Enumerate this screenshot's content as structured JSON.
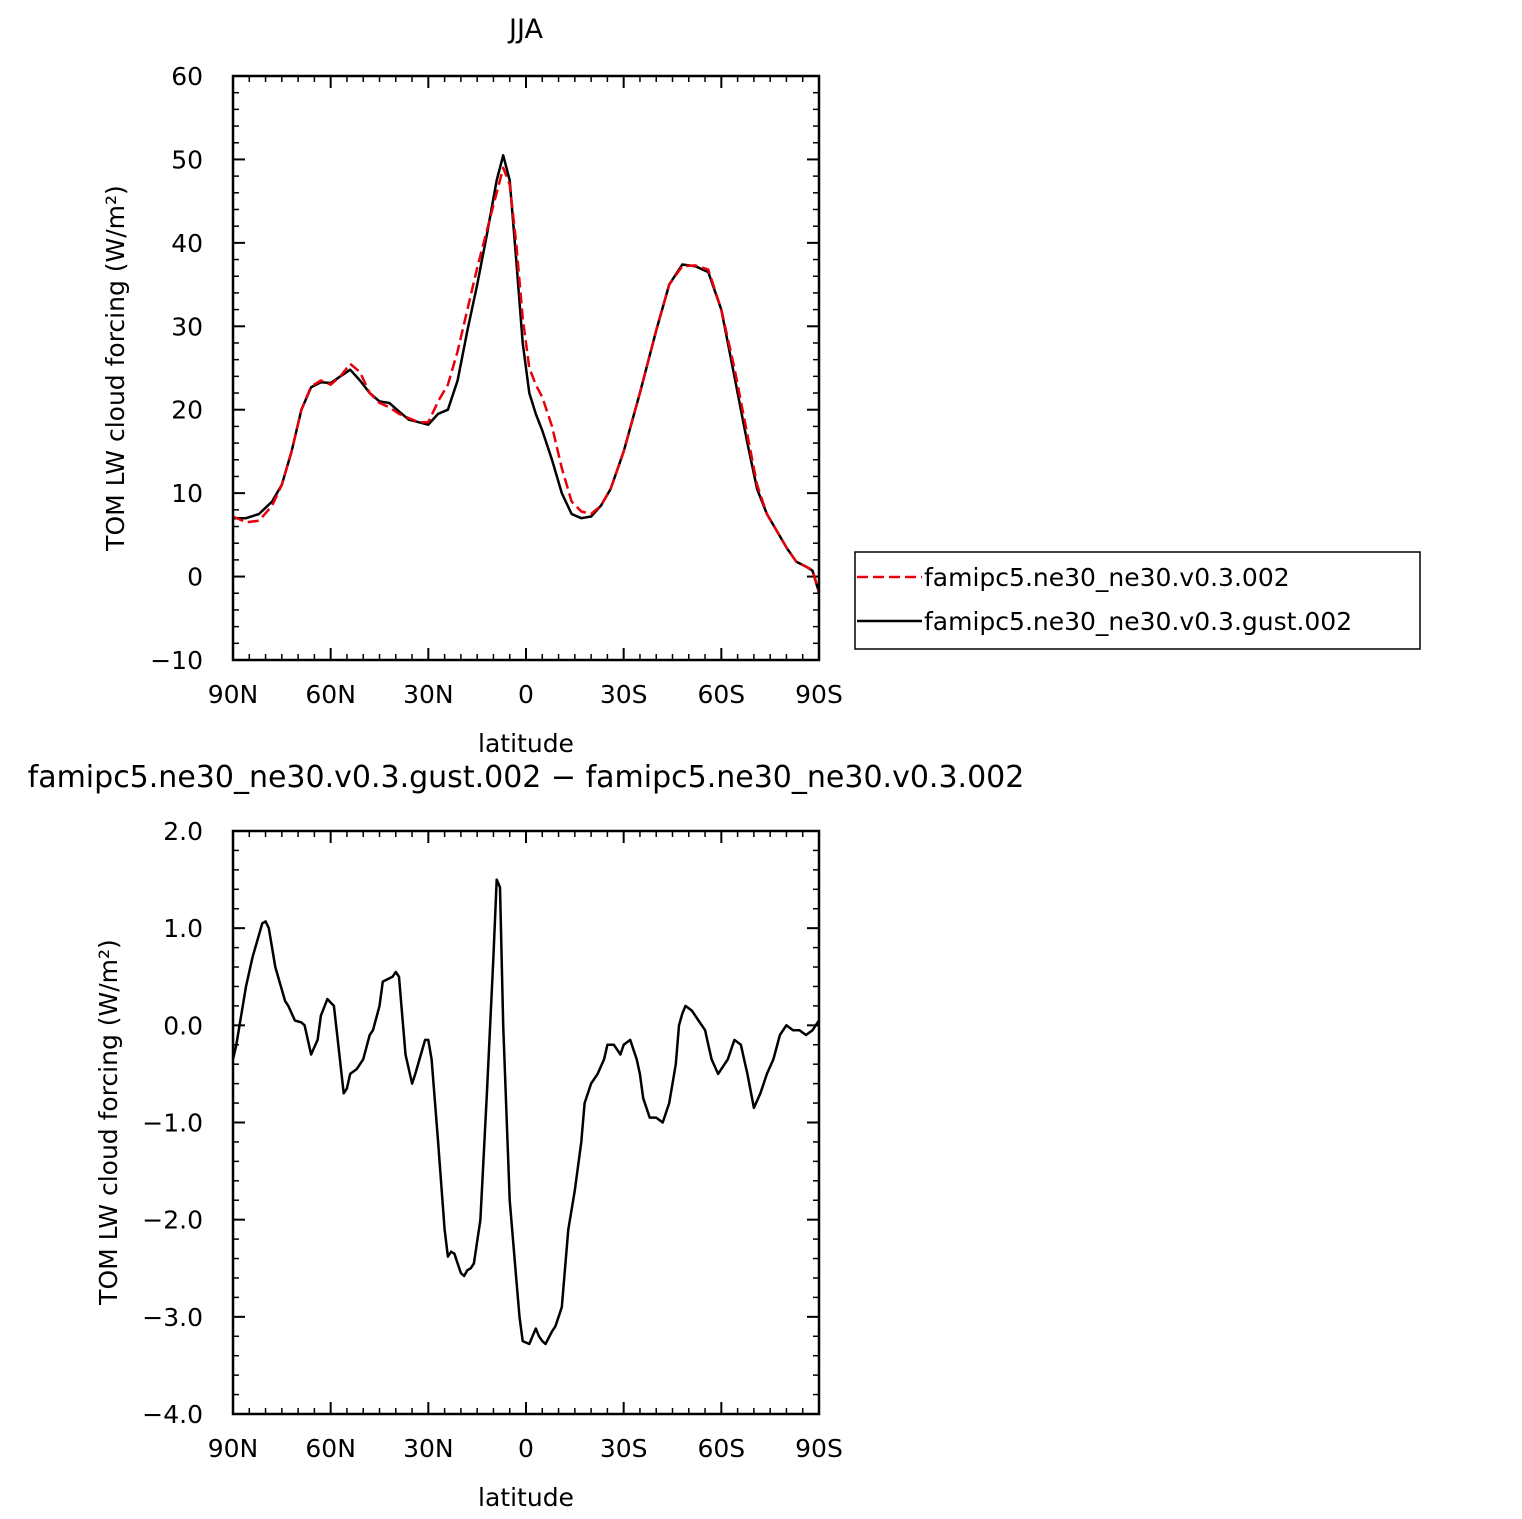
{
  "chart_data": [
    {
      "type": "line",
      "title": "JJA",
      "xlabel": "latitude",
      "ylabel": "TOM LW cloud forcing (W/m²)",
      "xlim": [
        90,
        -90
      ],
      "ylim": [
        -10,
        60
      ],
      "xticks": [
        90,
        60,
        30,
        0,
        -30,
        -60,
        -90
      ],
      "xtick_labels": [
        "90N",
        "60N",
        "30N",
        "0",
        "30S",
        "60S",
        "90S"
      ],
      "yticks": [
        -10,
        0,
        10,
        20,
        30,
        40,
        50,
        60
      ],
      "ytick_labels": [
        "−10",
        "0",
        "10",
        "20",
        "30",
        "40",
        "50",
        "60"
      ],
      "legend_position": "right",
      "series": [
        {
          "name": "famipc5.ne30_ne30.v0.3.002",
          "color": "#e8000b",
          "style": "dashed",
          "x": [
            90,
            86,
            82,
            78,
            75,
            72,
            69,
            66,
            63,
            60,
            57,
            54,
            51,
            48,
            45,
            42,
            39,
            36,
            33,
            30,
            27,
            24,
            21,
            18,
            15,
            12,
            9,
            7,
            5,
            3,
            1,
            -1,
            -3,
            -5,
            -8,
            -11,
            -14,
            -17,
            -20,
            -23,
            -26,
            -30,
            -35,
            -40,
            -44,
            -48,
            -52,
            -56,
            -60,
            -64,
            -68,
            -71,
            -74,
            -77,
            -80,
            -83,
            -86,
            -88,
            -90
          ],
          "y": [
            7.2,
            6.5,
            6.7,
            8.5,
            11,
            15,
            20,
            22.8,
            23.5,
            23,
            24,
            25.5,
            24.5,
            22,
            20.8,
            20.3,
            19.5,
            19,
            18.5,
            18.5,
            21,
            23,
            27,
            32,
            37,
            41.5,
            46,
            49,
            47,
            40,
            31,
            25,
            23,
            21.5,
            18,
            13,
            9,
            7.8,
            7.5,
            8.5,
            10.5,
            15,
            22,
            29.5,
            35,
            37.2,
            37.3,
            36.8,
            32,
            25,
            17,
            11,
            7.5,
            5.5,
            3.5,
            1.8,
            1.2,
            0.8,
            -1.9
          ]
        },
        {
          "name": "famipc5.ne30_ne30.v0.3.gust.002",
          "color": "#000000",
          "style": "solid",
          "x": [
            90,
            86,
            82,
            78,
            75,
            72,
            69,
            66,
            63,
            60,
            57,
            54,
            51,
            48,
            45,
            42,
            39,
            36,
            33,
            30,
            27,
            24,
            21,
            18,
            15,
            12,
            9,
            7,
            5,
            3,
            1,
            -1,
            -3,
            -5,
            -8,
            -11,
            -14,
            -17,
            -20,
            -23,
            -26,
            -30,
            -35,
            -40,
            -44,
            -48,
            -52,
            -56,
            -60,
            -64,
            -68,
            -71,
            -74,
            -77,
            -80,
            -83,
            -86,
            -88,
            -90
          ],
          "y": [
            7,
            7,
            7.5,
            9,
            11,
            15,
            20,
            22.7,
            23.3,
            23.2,
            24,
            24.8,
            23.5,
            22,
            21,
            20.8,
            19.8,
            18.8,
            18.5,
            18.2,
            19.5,
            20,
            23.5,
            29.5,
            35,
            41,
            47.5,
            50.5,
            47.5,
            38,
            28,
            22,
            19.5,
            17.5,
            14,
            10,
            7.5,
            7,
            7.2,
            8.5,
            10.5,
            15,
            22,
            29.5,
            35,
            37.4,
            37.2,
            36.5,
            32,
            24,
            16,
            10.5,
            7.5,
            5.5,
            3.5,
            1.8,
            1.2,
            0.7,
            -1.9
          ]
        }
      ]
    },
    {
      "type": "line",
      "title": "famipc5.ne30_ne30.v0.3.gust.002 − famipc5.ne30_ne30.v0.3.002",
      "xlabel": "latitude",
      "ylabel": "TOM LW cloud forcing (W/m²)",
      "xlim": [
        90,
        -90
      ],
      "ylim": [
        -4.0,
        2.0
      ],
      "xticks": [
        90,
        60,
        30,
        0,
        -30,
        -60,
        -90
      ],
      "xtick_labels": [
        "90N",
        "60N",
        "30N",
        "0",
        "30S",
        "60S",
        "90S"
      ],
      "yticks": [
        -4,
        -3,
        -2,
        -1,
        0,
        1,
        2
      ],
      "ytick_labels": [
        "−4.0",
        "−3.0",
        "−2.0",
        "−1.0",
        "0.0",
        "1.0",
        "2.0"
      ],
      "series": [
        {
          "color": "#000000",
          "style": "solid",
          "x": [
            90,
            89,
            86,
            84,
            81,
            80,
            79,
            77,
            74,
            73,
            71,
            69,
            68,
            66,
            64,
            63,
            61,
            59,
            58,
            56,
            55,
            54,
            52,
            51,
            50,
            48,
            47,
            45,
            44,
            41,
            40,
            39,
            37,
            35,
            34,
            31,
            30,
            29,
            27,
            25,
            24,
            23,
            22,
            21,
            20,
            19,
            18,
            17,
            16,
            14,
            12,
            10,
            9,
            8,
            7,
            5,
            3,
            2,
            1,
            -1,
            -2,
            -3,
            -4,
            -5,
            -6,
            -8,
            -9,
            -10,
            -11,
            -13,
            -15,
            -17,
            -18,
            -20,
            -22,
            -24,
            -25,
            -27,
            -29,
            -30,
            -32,
            -34,
            -35,
            -36,
            -38,
            -40,
            -42,
            -44,
            -46,
            -47,
            -48,
            -49,
            -51,
            -53,
            -55,
            -56,
            -57,
            -59,
            -60,
            -62,
            -63,
            -64,
            -66,
            -67,
            -68,
            -70,
            -72,
            -74,
            -76,
            -78,
            -80,
            -82,
            -84,
            -86,
            -88,
            -90
          ],
          "y": [
            -0.35,
            -0.2,
            0.4,
            0.7,
            1.05,
            1.07,
            1.0,
            0.6,
            0.25,
            0.2,
            0.05,
            0.03,
            0.0,
            -0.3,
            -0.15,
            0.1,
            0.27,
            0.2,
            -0.1,
            -0.7,
            -0.65,
            -0.5,
            -0.45,
            -0.4,
            -0.35,
            -0.1,
            -0.05,
            0.2,
            0.45,
            0.5,
            0.55,
            0.5,
            -0.3,
            -0.6,
            -0.5,
            -0.15,
            -0.15,
            -0.35,
            -1.2,
            -2.1,
            -2.38,
            -2.33,
            -2.35,
            -2.45,
            -2.55,
            -2.58,
            -2.52,
            -2.5,
            -2.45,
            -2.0,
            -0.7,
            0.7,
            1.5,
            1.42,
            0.0,
            -1.8,
            -2.6,
            -3.0,
            -3.25,
            -3.28,
            -3.2,
            -3.12,
            -3.2,
            -3.25,
            -3.28,
            -3.15,
            -3.1,
            -3.0,
            -2.9,
            -2.1,
            -1.7,
            -1.2,
            -0.8,
            -0.6,
            -0.5,
            -0.35,
            -0.2,
            -0.2,
            -0.3,
            -0.2,
            -0.15,
            -0.35,
            -0.5,
            -0.75,
            -0.95,
            -0.95,
            -1.0,
            -0.8,
            -0.4,
            0.0,
            0.12,
            0.2,
            0.15,
            0.05,
            -0.05,
            -0.2,
            -0.35,
            -0.5,
            -0.45,
            -0.35,
            -0.25,
            -0.15,
            -0.2,
            -0.35,
            -0.5,
            -0.85,
            -0.7,
            -0.5,
            -0.35,
            -0.1,
            0.0,
            -0.05,
            -0.05,
            -0.1,
            -0.05,
            0.05
          ]
        }
      ]
    }
  ]
}
